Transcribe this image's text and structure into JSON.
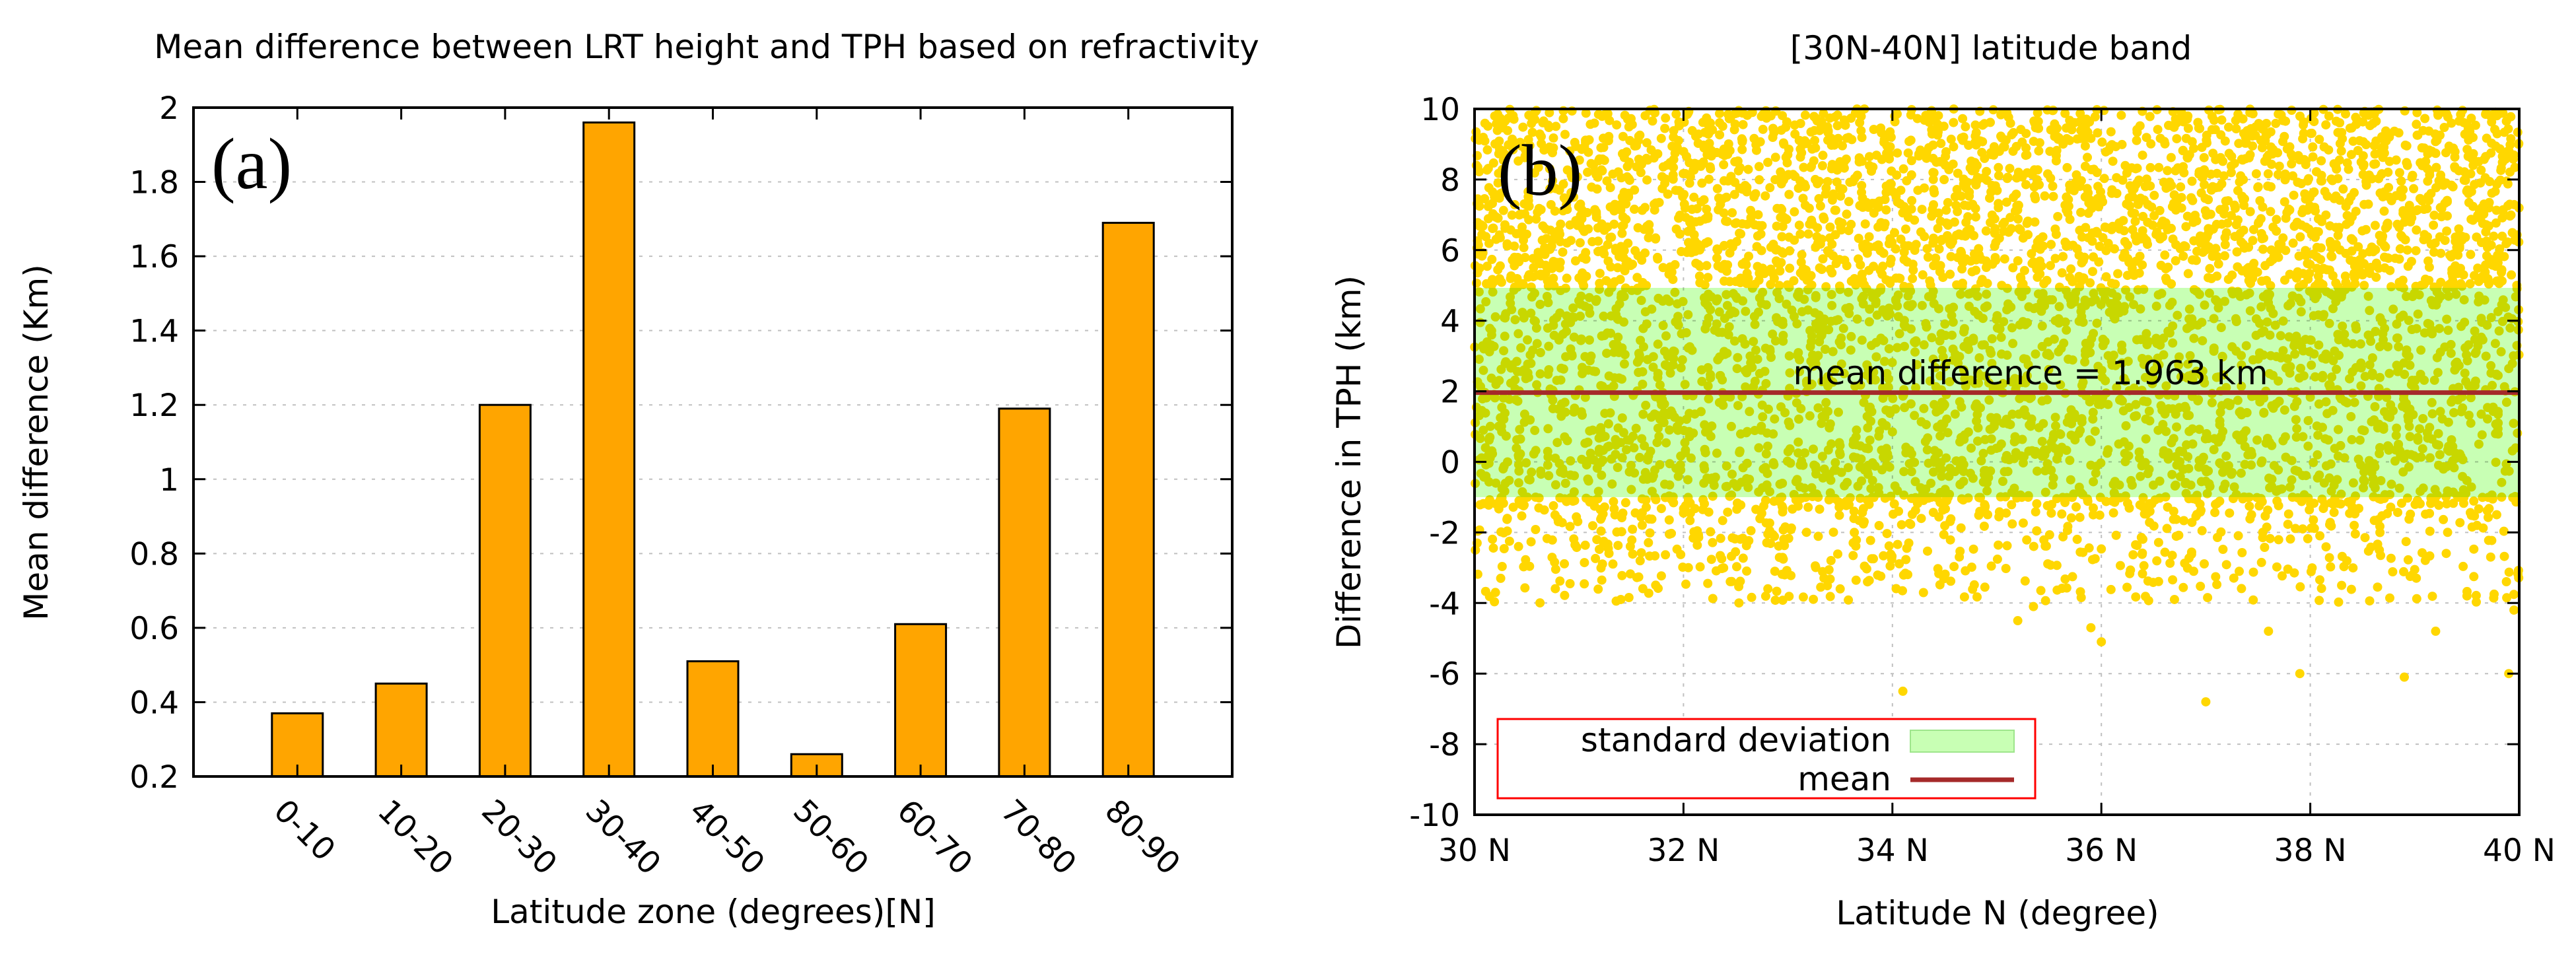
{
  "chart_data": [
    {
      "type": "bar",
      "title": "Mean difference between LRT height and TPH based on refractivity",
      "panel_label": "(a)",
      "xlabel": "Latitude zone (degrees)[N]",
      "ylabel": "Mean difference (Km)",
      "categories": [
        "0-10",
        "10-20",
        "20-30",
        "30-40",
        "40-50",
        "50-60",
        "60-70",
        "70-80",
        "80-90"
      ],
      "values": [
        0.37,
        0.45,
        1.2,
        1.96,
        0.51,
        0.26,
        0.61,
        1.19,
        1.69
      ],
      "ylim": [
        0.2,
        2
      ],
      "yticks": [
        0.2,
        0.4,
        0.6,
        0.8,
        1,
        1.2,
        1.4,
        1.6,
        1.8,
        2
      ],
      "ytick_labels": [
        "0.2",
        "0.4",
        "0.6",
        "0.8",
        "1",
        "1.2",
        "1.4",
        "1.6",
        "1.8",
        "2"
      ],
      "bar_color": "#ffa500",
      "grid": true
    },
    {
      "type": "scatter",
      "title": "[30N-40N] latitude band",
      "panel_label": "(b)",
      "xlabel": "Latitude N (degree)",
      "ylabel": "Difference in TPH (km)",
      "xlim": [
        30,
        40
      ],
      "ylim": [
        -10,
        10
      ],
      "xticks": [
        30,
        32,
        34,
        36,
        38,
        40
      ],
      "xtick_labels": [
        "30 N",
        "32 N",
        "34 N",
        "36 N",
        "38 N",
        "40 N"
      ],
      "yticks": [
        -10,
        -8,
        -6,
        -4,
        -2,
        0,
        2,
        4,
        6,
        8,
        10
      ],
      "ytick_labels": [
        "-10",
        "-8",
        "-6",
        "-4",
        "-2",
        "0",
        "2",
        "4",
        "6",
        "8",
        "10"
      ],
      "mean": 1.963,
      "std_band": [
        -1.0,
        4.93
      ],
      "annotation": "mean difference = 1.963 km",
      "point_color": "#ffd700",
      "band_color": "#c8ffb4",
      "mean_color": "#a52a2a",
      "legend_border_color": "#ff0000",
      "legend": [
        {
          "label": "standard deviation",
          "kind": "band"
        },
        {
          "label": "mean",
          "kind": "line"
        }
      ],
      "outliers": [
        {
          "x": 34.1,
          "y": -6.5
        },
        {
          "x": 35.2,
          "y": -4.5
        },
        {
          "x": 35.35,
          "y": -4.1
        },
        {
          "x": 35.9,
          "y": -4.7
        },
        {
          "x": 36.0,
          "y": -5.1
        },
        {
          "x": 37.0,
          "y": -6.8
        },
        {
          "x": 37.6,
          "y": -4.8
        },
        {
          "x": 37.9,
          "y": -6.0
        },
        {
          "x": 38.9,
          "y": -6.1
        },
        {
          "x": 39.2,
          "y": -4.8
        },
        {
          "x": 39.9,
          "y": -6.0
        },
        {
          "x": 39.95,
          "y": -4.2
        },
        {
          "x": 30.2,
          "y": -3.7
        },
        {
          "x": 31.4,
          "y": -3.9
        },
        {
          "x": 33.5,
          "y": -3.6
        },
        {
          "x": 36.7,
          "y": -3.9
        },
        {
          "x": 38.3,
          "y": -3.5
        },
        {
          "x": 39.5,
          "y": -3.8
        }
      ],
      "grid": true
    }
  ]
}
